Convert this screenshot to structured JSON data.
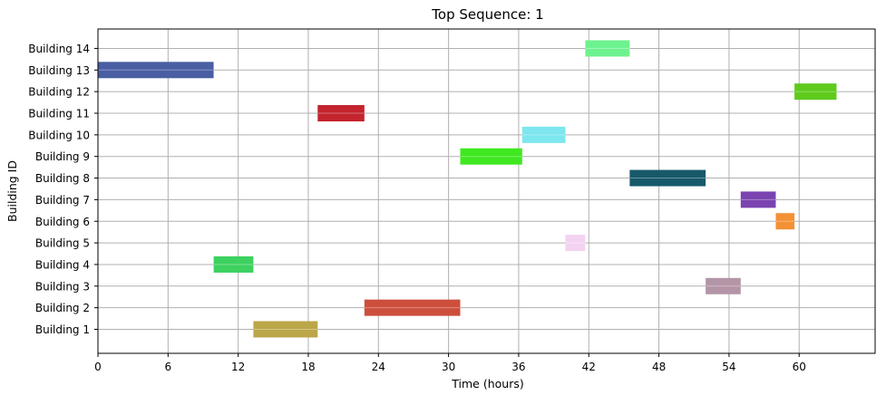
{
  "chart_data": {
    "type": "gantt",
    "title": "Top Sequence: 1",
    "xlabel": "Time (hours)",
    "ylabel": "Building ID",
    "xlim": [
      0,
      66.5
    ],
    "xticks": [
      0,
      6,
      12,
      18,
      24,
      30,
      36,
      42,
      48,
      54,
      60
    ],
    "grid": true,
    "categories": [
      "Building 1",
      "Building 2",
      "Building 3",
      "Building 4",
      "Building 5",
      "Building 6",
      "Building 7",
      "Building 8",
      "Building 9",
      "Building 10",
      "Building 11",
      "Building 12",
      "Building 13",
      "Building 14"
    ],
    "tasks": [
      {
        "building": "Building 13",
        "start": 0.0,
        "end": 9.9,
        "color": "#4a5fa3"
      },
      {
        "building": "Building 4",
        "start": 9.9,
        "end": 13.3,
        "color": "#3dd15f"
      },
      {
        "building": "Building 1",
        "start": 13.3,
        "end": 18.8,
        "color": "#bba648"
      },
      {
        "building": "Building 11",
        "start": 18.8,
        "end": 22.8,
        "color": "#c4242d"
      },
      {
        "building": "Building 2",
        "start": 22.8,
        "end": 31.0,
        "color": "#cc4f3c"
      },
      {
        "building": "Building 9",
        "start": 31.0,
        "end": 36.3,
        "color": "#3fe81f"
      },
      {
        "building": "Building 10",
        "start": 36.3,
        "end": 40.0,
        "color": "#7de6ef"
      },
      {
        "building": "Building 5",
        "start": 40.0,
        "end": 41.7,
        "color": "#f3d3f1"
      },
      {
        "building": "Building 14",
        "start": 41.7,
        "end": 45.5,
        "color": "#6ef28f"
      },
      {
        "building": "Building 8",
        "start": 45.5,
        "end": 52.0,
        "color": "#17596a"
      },
      {
        "building": "Building 3",
        "start": 52.0,
        "end": 55.0,
        "color": "#b495a8"
      },
      {
        "building": "Building 7",
        "start": 55.0,
        "end": 58.0,
        "color": "#7a43b0"
      },
      {
        "building": "Building 6",
        "start": 58.0,
        "end": 59.6,
        "color": "#f39134"
      },
      {
        "building": "Building 12",
        "start": 59.6,
        "end": 63.2,
        "color": "#5fca1c"
      }
    ]
  }
}
